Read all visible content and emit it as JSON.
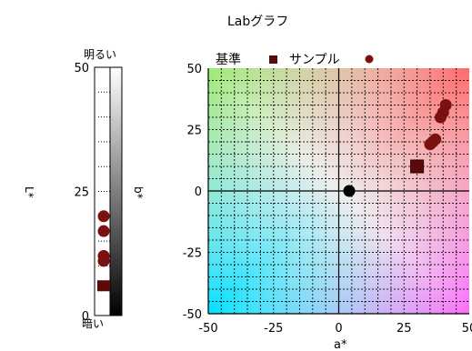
{
  "chart_data": [
    {
      "type": "scatter",
      "title": "Labグラフ",
      "xlabel": "a*",
      "ylabel": "b*",
      "xlim": [
        -50,
        50
      ],
      "ylim": [
        -50,
        50
      ],
      "x_ticks": [
        "-50",
        "-25",
        "0",
        "25",
        "50"
      ],
      "y_ticks": [
        "50",
        "25",
        "0",
        "-25",
        "-50"
      ],
      "grid": true,
      "legend_position": "top",
      "colors": {
        "reference": "#5a0a0a",
        "sample": "#7a1010",
        "origin": "#000000"
      },
      "series": [
        {
          "name": "基準",
          "marker": "square",
          "points": [
            {
              "x": 30,
              "y": 10
            }
          ]
        },
        {
          "name": "サンプル",
          "marker": "circle",
          "points": [
            {
              "x": 35,
              "y": 19
            },
            {
              "x": 36,
              "y": 20
            },
            {
              "x": 37,
              "y": 21
            },
            {
              "x": 39,
              "y": 30
            },
            {
              "x": 40,
              "y": 32
            },
            {
              "x": 41,
              "y": 35
            }
          ]
        },
        {
          "name": "",
          "marker": "circle",
          "points": [
            {
              "x": 4,
              "y": 0
            }
          ]
        }
      ]
    },
    {
      "type": "scatter",
      "ylabel": "L*",
      "side_label": "b*",
      "top_label": "明るい",
      "bottom_label": "暗い",
      "ylim": [
        0,
        50
      ],
      "y_ticks": [
        "50",
        "25",
        "0"
      ],
      "series": [
        {
          "name": "基準",
          "marker": "square",
          "values": [
            6
          ]
        },
        {
          "name": "サンプル",
          "marker": "circle",
          "values": [
            20,
            17,
            12,
            11
          ]
        }
      ]
    }
  ]
}
